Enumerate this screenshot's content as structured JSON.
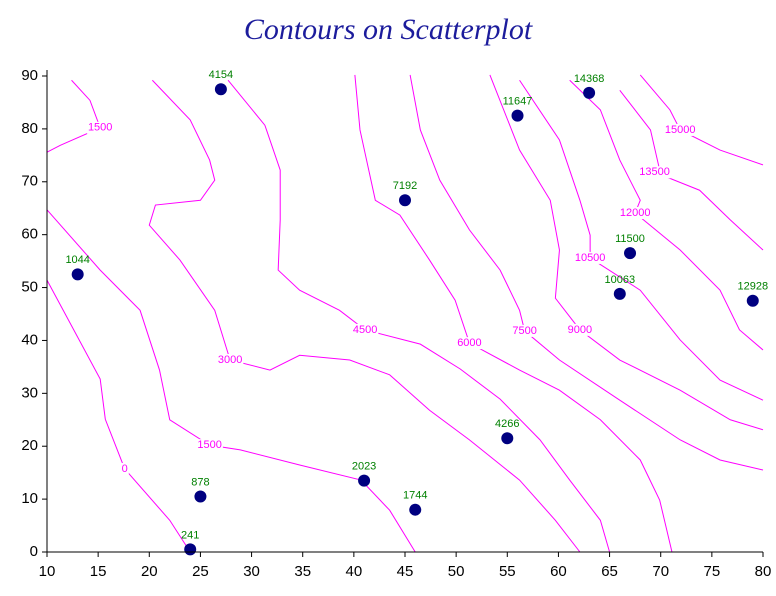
{
  "chart_data": {
    "type": "contour_scatter",
    "title": "Contours on Scatterplot",
    "xlim": [
      10,
      80
    ],
    "xticks": [
      10,
      15,
      20,
      25,
      30,
      35,
      40,
      45,
      50,
      55,
      60,
      65,
      70,
      75,
      80
    ],
    "ylim": [
      0,
      90
    ],
    "yticks": [
      0,
      10,
      20,
      30,
      40,
      50,
      60,
      70,
      80,
      90
    ],
    "point_color": "#000080",
    "contour_color": "#ff00ff",
    "points": {
      "x": [
        27,
        13,
        24,
        25,
        41,
        46,
        55,
        45,
        56,
        63,
        67,
        66,
        79
      ],
      "y": [
        87.5,
        52.5,
        0.5,
        10.5,
        13.5,
        8,
        21.5,
        66.5,
        82.5,
        86.8,
        56.5,
        48.8,
        47.5
      ],
      "z": [
        4154,
        1044,
        241,
        878,
        2023,
        1744,
        4266,
        7192,
        11647,
        14368,
        11500,
        10063,
        12928
      ]
    },
    "contours": [
      {
        "level": 0,
        "x": [
          10,
          15.2,
          15.7,
          17.6,
          22,
          24
        ],
        "y": [
          51.4,
          32.7,
          25.1,
          15.7,
          6,
          0
        ]
      },
      {
        "level": 1500,
        "x": [
          12.4,
          14.2,
          15.2,
          11.3,
          10
        ],
        "y": [
          89.2,
          85.4,
          80.2,
          76.9,
          75.6
        ]
      },
      {
        "level": 1500,
        "x": [
          10,
          15.2,
          19.1,
          21,
          22,
          25.9,
          28.9,
          34.8,
          40.7,
          43.5,
          46
        ],
        "y": [
          64.7,
          53.3,
          45.7,
          34.4,
          25,
          20.2,
          19.3,
          16.4,
          13.6,
          7.9,
          0
        ]
      },
      {
        "level": 3000,
        "x": [
          20.3,
          24,
          25.9,
          26.4,
          25,
          20.6,
          20,
          23,
          26.4,
          27.9,
          31.8,
          34.7,
          39.6,
          43.5,
          47.4,
          51.3,
          56.2,
          59.7,
          62.1
        ],
        "y": [
          89.2,
          81.7,
          74.1,
          70.3,
          66.5,
          65.6,
          61.8,
          55.2,
          45.7,
          36.3,
          34.4,
          37.2,
          36.3,
          33.5,
          26.8,
          21.2,
          13.6,
          6,
          0
        ]
      },
      {
        "level": 4500,
        "x": [
          27.7,
          31.3,
          32.8,
          32.8,
          32.6,
          34.7,
          38.6,
          41.1,
          46.5,
          50.4,
          54.3,
          58.2,
          61.1,
          64.1,
          65
        ],
        "y": [
          89.2,
          80.7,
          72.2,
          62.8,
          53.3,
          49.5,
          45.7,
          42,
          39.3,
          34.6,
          28.9,
          21.2,
          13.6,
          6,
          0
        ]
      },
      {
        "level": 6000,
        "x": [
          40.1,
          40.6,
          42.1,
          44.5,
          47.4,
          49.9,
          51.3,
          56.2,
          60.1,
          64.1,
          68,
          69.9,
          71.1
        ],
        "y": [
          90.2,
          79.8,
          66.5,
          63.7,
          55.2,
          47.6,
          39.5,
          34.4,
          30.6,
          25,
          17.4,
          9.8,
          0
        ]
      },
      {
        "level": 7500,
        "x": [
          45.5,
          46.5,
          48.4,
          51.3,
          54.3,
          56.2,
          56.7,
          60.1,
          66,
          71.9,
          75.8,
          80
        ],
        "y": [
          90.2,
          79.8,
          70.3,
          60.9,
          53.3,
          45.7,
          41.8,
          36.3,
          28.7,
          21.2,
          17.4,
          15.5
        ]
      },
      {
        "level": 9000,
        "x": [
          53.3,
          56.2,
          59.2,
          60.1,
          59.7,
          62.1,
          66,
          71.9,
          76.8,
          80
        ],
        "y": [
          90.2,
          76,
          66.5,
          57.1,
          48,
          42,
          36.3,
          30.6,
          25,
          23.1
        ]
      },
      {
        "level": 10500,
        "x": [
          56.2,
          60.1,
          62.1,
          63.1,
          63.1,
          68,
          71.9,
          75.8,
          80
        ],
        "y": [
          89.2,
          77.9,
          66.5,
          59.9,
          55.6,
          49.5,
          40.1,
          32.5,
          28.7
        ]
      },
      {
        "level": 12000,
        "x": [
          61.1,
          64.1,
          66,
          68,
          67.5,
          71.9,
          75.8,
          77.7,
          80
        ],
        "y": [
          89.2,
          83.6,
          74.1,
          66.5,
          64.1,
          57.1,
          49.5,
          42,
          38.2
        ]
      },
      {
        "level": 13500,
        "x": [
          66,
          69,
          69.9,
          69.4,
          73.8,
          76.8,
          80
        ],
        "y": [
          87.3,
          79.8,
          72.2,
          71.8,
          68.4,
          62.8,
          57.1
        ]
      },
      {
        "level": 15000,
        "x": [
          68,
          70.9,
          71.9,
          75.8,
          80
        ],
        "y": [
          90.2,
          83.6,
          79.8,
          76,
          73.2
        ]
      }
    ]
  }
}
